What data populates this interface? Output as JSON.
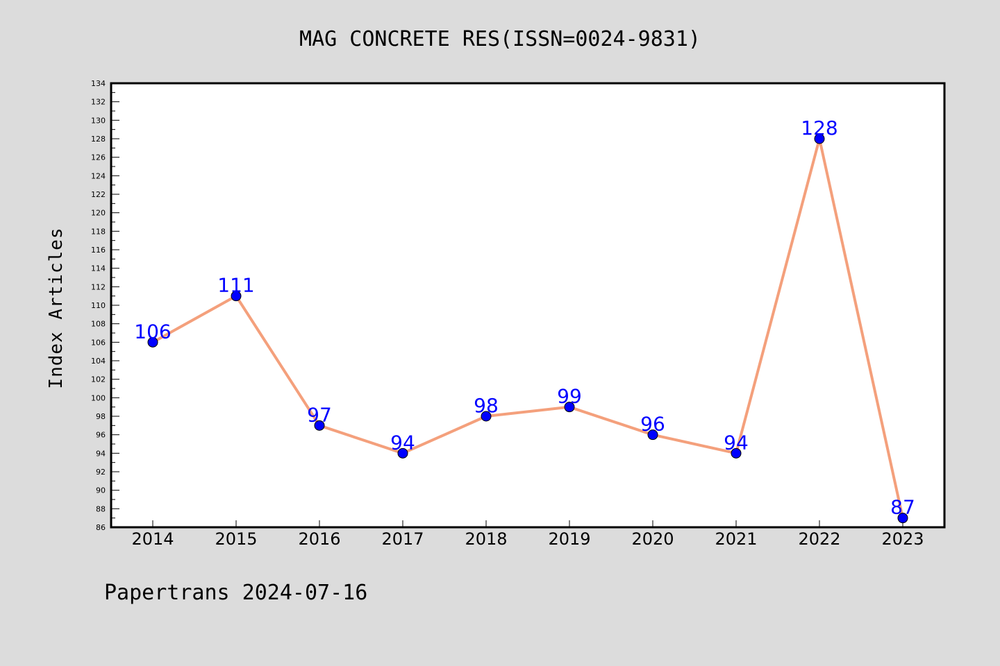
{
  "chart_data": {
    "type": "line",
    "title": "MAG CONCRETE RES(ISSN=0024-9831)",
    "xlabel": "",
    "ylabel": "Index Articles",
    "categories": [
      "2014",
      "2015",
      "2016",
      "2017",
      "2018",
      "2019",
      "2020",
      "2021",
      "2022",
      "2023"
    ],
    "series": [
      {
        "values": [
          106,
          111,
          97,
          94,
          98,
          99,
          96,
          94,
          128,
          87
        ]
      }
    ],
    "ylim": [
      86,
      134
    ],
    "y_ticks": [
      86,
      88,
      90,
      92,
      94,
      96,
      98,
      100,
      102,
      104,
      106,
      108,
      110,
      112,
      114,
      116,
      118,
      120,
      122,
      124,
      126,
      128,
      130,
      132,
      134
    ],
    "grid": false,
    "legend": "none",
    "colors": {
      "background": "#dcdcdc",
      "plot_background": "#ffffff",
      "line": "#f4a07c",
      "marker": "#0000ff",
      "data_label": "#0000ff"
    }
  },
  "footer": "Papertrans 2024-07-16"
}
